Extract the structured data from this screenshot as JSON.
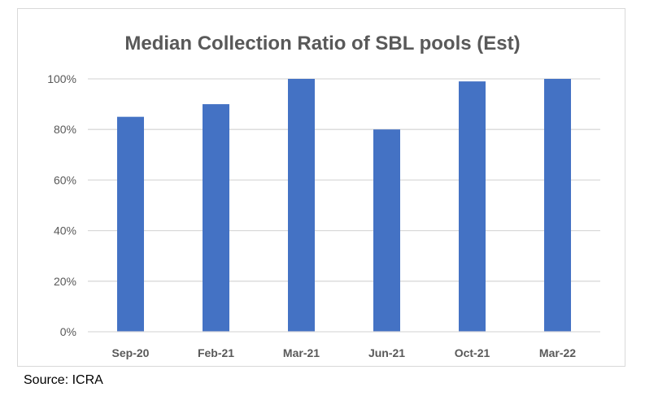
{
  "chart_data": {
    "type": "bar",
    "title": "Median Collection Ratio of SBL pools (Est)",
    "categories": [
      "Sep-20",
      "Feb-21",
      "Mar-21",
      "Jun-21",
      "Oct-21",
      "Mar-22"
    ],
    "values": [
      85,
      90,
      100,
      80,
      99,
      100
    ],
    "yticks": [
      "0%",
      "20%",
      "40%",
      "60%",
      "80%",
      "100%"
    ],
    "ylim": [
      0,
      100
    ],
    "grid": true,
    "bar_color": "#4472c4"
  },
  "source": "Source: ICRA"
}
